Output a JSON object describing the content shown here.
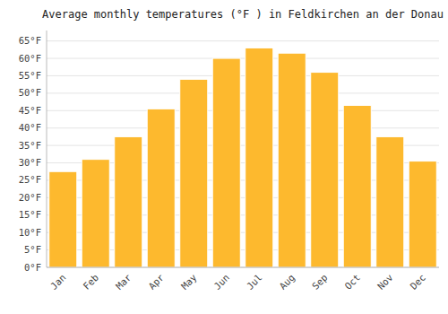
{
  "chart_data": {
    "type": "bar",
    "title": "Average monthly temperatures (°F ) in Feldkirchen an der Donau",
    "categories": [
      "Jan",
      "Feb",
      "Mar",
      "Apr",
      "May",
      "Jun",
      "Jul",
      "Aug",
      "Sep",
      "Oct",
      "Nov",
      "Dec"
    ],
    "values": [
      27.5,
      31.0,
      37.5,
      45.5,
      54.0,
      60.0,
      63.0,
      61.5,
      56.0,
      46.5,
      37.5,
      30.5
    ],
    "color": "#FDB92E",
    "ylim": [
      0,
      68
    ],
    "yticks": [
      {
        "value": 0,
        "label": "0°F"
      },
      {
        "value": 5,
        "label": "5°F"
      },
      {
        "value": 10,
        "label": "10°F"
      },
      {
        "value": 15,
        "label": "15°F"
      },
      {
        "value": 20,
        "label": "20°F"
      },
      {
        "value": 25,
        "label": "25°F"
      },
      {
        "value": 30,
        "label": "30°F"
      },
      {
        "value": 35,
        "label": "35°F"
      },
      {
        "value": 40,
        "label": "40°F"
      },
      {
        "value": 45,
        "label": "45°F"
      },
      {
        "value": 50,
        "label": "50°F"
      },
      {
        "value": 55,
        "label": "55°F"
      },
      {
        "value": 60,
        "label": "60°F"
      },
      {
        "value": 65,
        "label": "65°F"
      }
    ],
    "grid": true
  }
}
